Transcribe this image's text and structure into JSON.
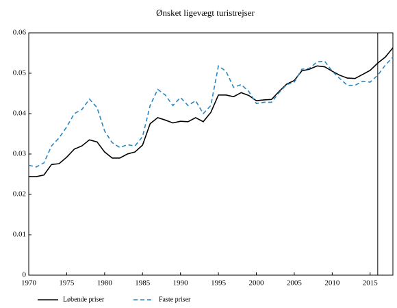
{
  "chart_data": {
    "type": "line",
    "title": "Ønsket ligevægt turistrejser",
    "x": [
      1970,
      1971,
      1972,
      1973,
      1974,
      1975,
      1976,
      1977,
      1978,
      1979,
      1980,
      1981,
      1982,
      1983,
      1984,
      1985,
      1986,
      1987,
      1988,
      1989,
      1990,
      1991,
      1992,
      1993,
      1994,
      1995,
      1996,
      1997,
      1998,
      1999,
      2000,
      2001,
      2002,
      2003,
      2004,
      2005,
      2006,
      2007,
      2008,
      2009,
      2010,
      2011,
      2012,
      2013,
      2014,
      2015,
      2016,
      2017,
      2018
    ],
    "series": [
      {
        "name": "Løbende priser",
        "color": "#000000",
        "dash": false,
        "values": [
          0.0244,
          0.0244,
          0.0248,
          0.0274,
          0.0276,
          0.0292,
          0.0312,
          0.032,
          0.0335,
          0.033,
          0.0305,
          0.029,
          0.029,
          0.03,
          0.0305,
          0.0322,
          0.0375,
          0.039,
          0.0384,
          0.0377,
          0.0381,
          0.038,
          0.039,
          0.038,
          0.0403,
          0.0446,
          0.0446,
          0.0442,
          0.0452,
          0.0445,
          0.0432,
          0.0434,
          0.0435,
          0.0455,
          0.0473,
          0.0482,
          0.0506,
          0.051,
          0.0518,
          0.0516,
          0.0505,
          0.0495,
          0.0488,
          0.0487,
          0.0497,
          0.0507,
          0.0525,
          0.054,
          0.0563
        ]
      },
      {
        "name": "Faste priser",
        "color": "#2a86c0",
        "dash": true,
        "values": [
          0.0272,
          0.0268,
          0.0278,
          0.032,
          0.034,
          0.0367,
          0.04,
          0.041,
          0.0436,
          0.0415,
          0.0357,
          0.0328,
          0.0316,
          0.0323,
          0.032,
          0.0343,
          0.042,
          0.046,
          0.0446,
          0.042,
          0.044,
          0.042,
          0.0432,
          0.04,
          0.042,
          0.0518,
          0.0505,
          0.0465,
          0.0472,
          0.0455,
          0.0425,
          0.0428,
          0.0428,
          0.0452,
          0.0472,
          0.0478,
          0.051,
          0.0512,
          0.0528,
          0.053,
          0.0505,
          0.0487,
          0.047,
          0.047,
          0.048,
          0.0478,
          0.0495,
          0.052,
          0.054
        ]
      }
    ],
    "xlim": [
      1970,
      2018
    ],
    "xticks": [
      1970,
      1975,
      1980,
      1985,
      1990,
      1995,
      2000,
      2005,
      2010,
      2015
    ],
    "ylim": [
      0,
      0.06
    ],
    "yticks": [
      0,
      0.01,
      0.02,
      0.03,
      0.04,
      0.05,
      0.06
    ],
    "vline": 2016,
    "grid": false
  }
}
